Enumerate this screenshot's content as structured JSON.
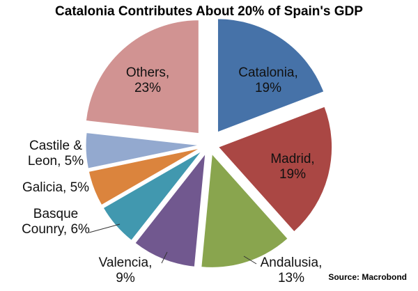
{
  "chart_data": {
    "type": "pie",
    "title": "Catalonia Contributes About 20% of Spain's GDP",
    "source": "Source: Macrobond",
    "slices": [
      {
        "label": [
          "Catalonia,",
          "19%"
        ],
        "value": 19,
        "color": "#4672A8"
      },
      {
        "label": [
          "Madrid,",
          "19%"
        ],
        "value": 19,
        "color": "#AA4744"
      },
      {
        "label": [
          "Andalusia,",
          "13%"
        ],
        "value": 13,
        "color": "#89A54E"
      },
      {
        "label": [
          "Valencia,",
          "9%"
        ],
        "value": 9,
        "color": "#71588F"
      },
      {
        "label": [
          "Basque",
          "Counry, 6%"
        ],
        "value": 6,
        "color": "#4198AF"
      },
      {
        "label": [
          "Galicia, 5%"
        ],
        "value": 5,
        "color": "#DB843D"
      },
      {
        "label": [
          "Castile &",
          "Leon, 5%"
        ],
        "value": 5,
        "color": "#93A9CF"
      },
      {
        "label": [
          "Others,",
          "23%"
        ],
        "value": 23,
        "color": "#D19392"
      }
    ]
  }
}
